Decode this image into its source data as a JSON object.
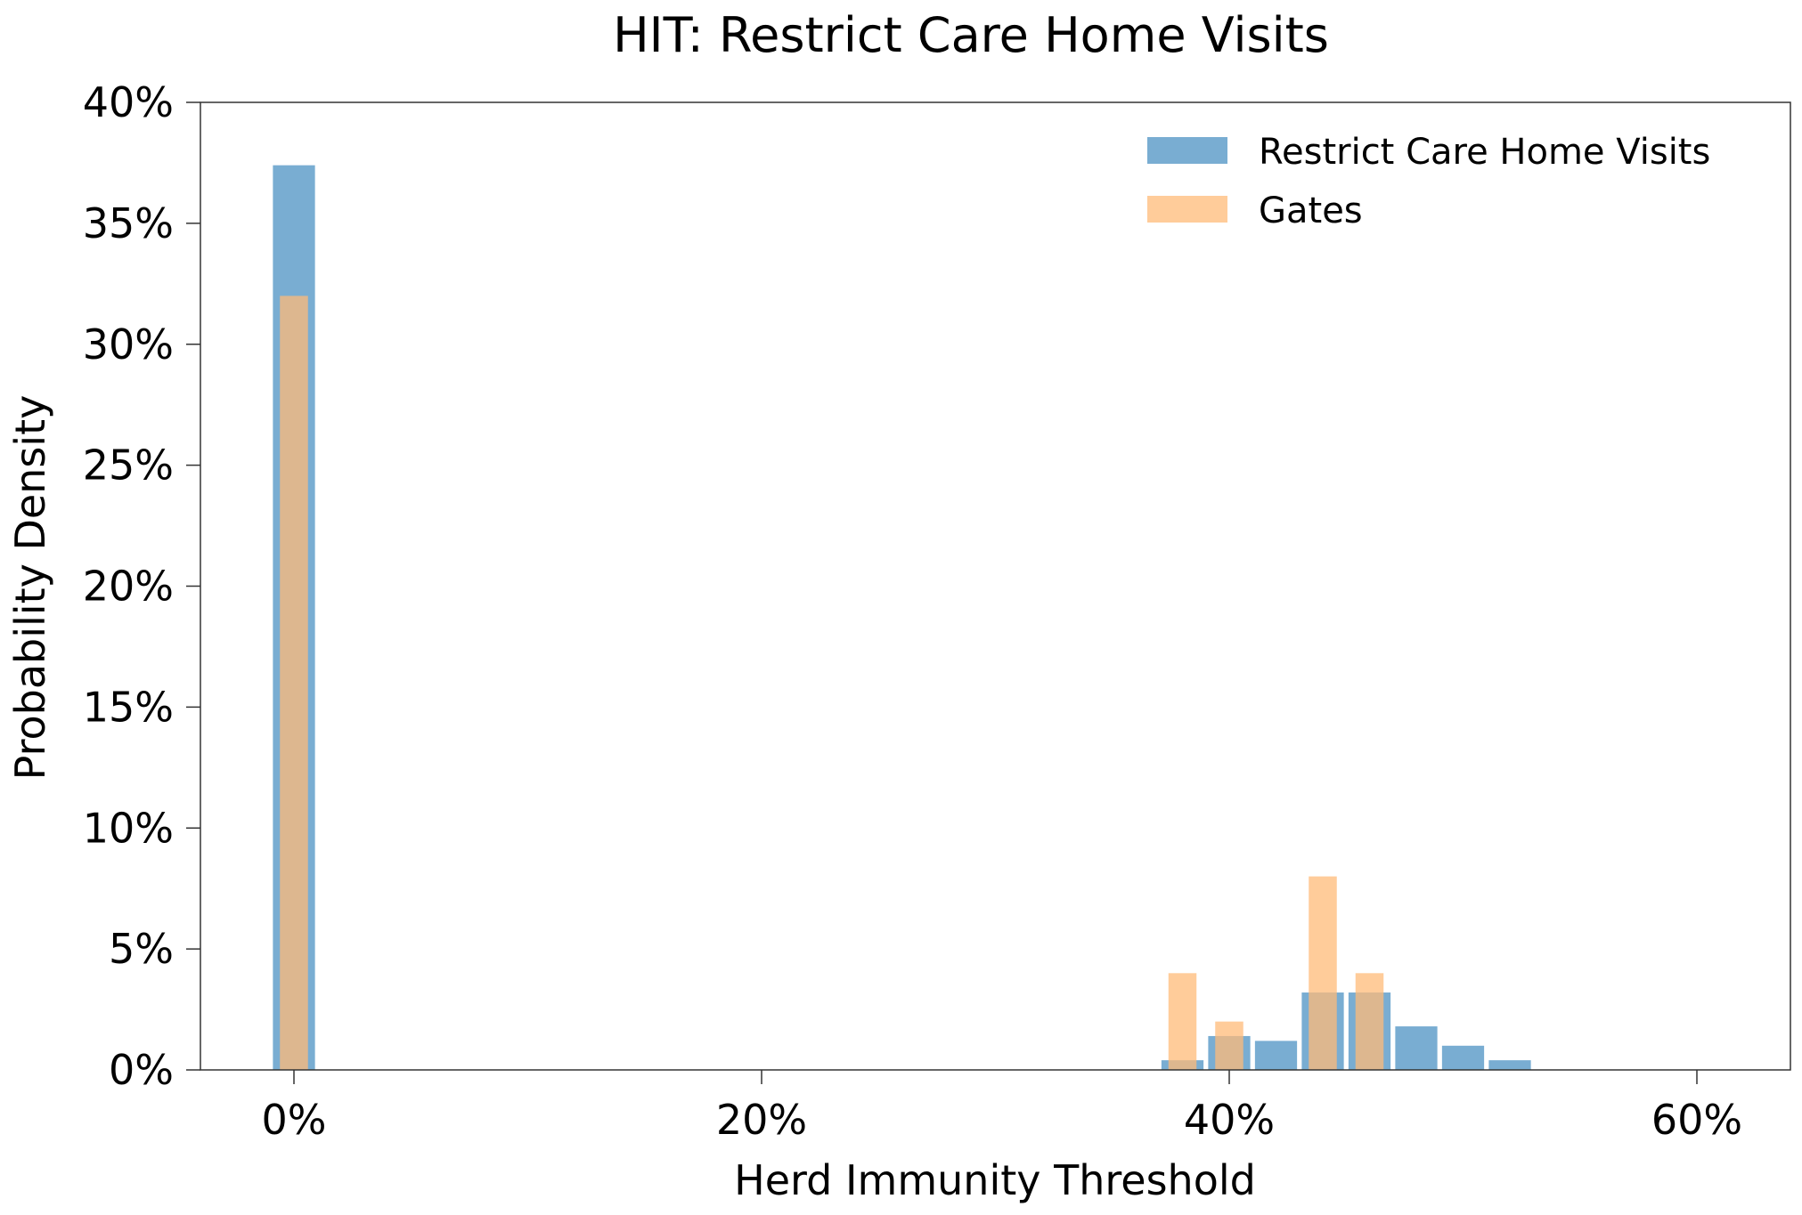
{
  "chart_data": {
    "type": "bar",
    "title": "HIT: Restrict Care Home Visits",
    "xlabel": "Herd Immunity Threshold",
    "ylabel": "Probability Density",
    "xlim": [
      -4,
      64
    ],
    "ylim": [
      0,
      40
    ],
    "x_ticks": [
      {
        "value": 0,
        "label": "0%"
      },
      {
        "value": 20,
        "label": "20%"
      },
      {
        "value": 40,
        "label": "40%"
      },
      {
        "value": 60,
        "label": "60%"
      }
    ],
    "y_ticks": [
      {
        "value": 0,
        "label": "0%"
      },
      {
        "value": 5,
        "label": "5%"
      },
      {
        "value": 10,
        "label": "10%"
      },
      {
        "value": 15,
        "label": "15%"
      },
      {
        "value": 20,
        "label": "20%"
      },
      {
        "value": 25,
        "label": "25%"
      },
      {
        "value": 30,
        "label": "30%"
      },
      {
        "value": 35,
        "label": "35%"
      },
      {
        "value": 40,
        "label": "40%"
      }
    ],
    "grid": false,
    "legend_position": "top-right",
    "series": [
      {
        "name": "Restrict Care Home Visits",
        "color": "#1f77b4",
        "opacity": 0.6,
        "bar_width": 1.8,
        "x": [
          0,
          38,
          40,
          42,
          44,
          46,
          48,
          50,
          52
        ],
        "values": [
          37.4,
          0.4,
          1.4,
          1.2,
          3.2,
          3.2,
          1.8,
          1.0,
          0.4
        ]
      },
      {
        "name": "Gates",
        "color": "#ffbb78",
        "opacity": 0.75,
        "bar_width": 1.2,
        "x": [
          0,
          38,
          40,
          44,
          46
        ],
        "values": [
          32.0,
          4.0,
          2.0,
          8.0,
          4.0
        ]
      }
    ]
  }
}
